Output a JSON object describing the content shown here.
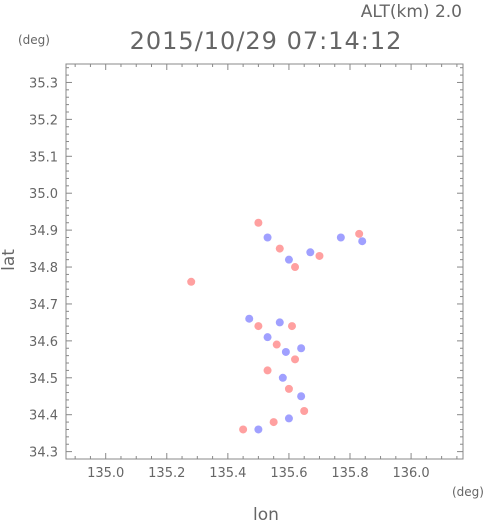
{
  "chart_data": {
    "type": "heatmap",
    "title": "2015/10/29 07:14:12",
    "subtitle": "ALT(km) 2.0",
    "xlabel": "lon",
    "ylabel": "lat",
    "x_unit": "(deg)",
    "y_unit": "(deg)",
    "xlim": [
      134.87,
      136.17
    ],
    "ylim": [
      34.28,
      35.35
    ],
    "x_ticks": [
      "135.0",
      "135.2",
      "135.4",
      "135.6",
      "135.8",
      "136.0"
    ],
    "y_ticks": [
      "34.3",
      "34.4",
      "34.5",
      "34.6",
      "34.7",
      "34.8",
      "34.9",
      "35.0",
      "35.1",
      "35.2",
      "35.3"
    ],
    "colors": {
      "positive": "#ff8080",
      "negative": "#8080ff",
      "axis": "#888888"
    },
    "points": [
      {
        "x": 135.5,
        "y": 34.92,
        "v": 1
      },
      {
        "x": 135.53,
        "y": 34.88,
        "v": -1
      },
      {
        "x": 135.57,
        "y": 34.85,
        "v": 1
      },
      {
        "x": 135.6,
        "y": 34.82,
        "v": -1
      },
      {
        "x": 135.62,
        "y": 34.8,
        "v": 1
      },
      {
        "x": 135.67,
        "y": 34.84,
        "v": -1
      },
      {
        "x": 135.7,
        "y": 34.83,
        "v": 1
      },
      {
        "x": 135.77,
        "y": 34.88,
        "v": -1
      },
      {
        "x": 135.83,
        "y": 34.89,
        "v": 1
      },
      {
        "x": 135.84,
        "y": 34.87,
        "v": -1
      },
      {
        "x": 135.28,
        "y": 34.76,
        "v": 1
      },
      {
        "x": 135.47,
        "y": 34.66,
        "v": -1
      },
      {
        "x": 135.5,
        "y": 34.64,
        "v": 1
      },
      {
        "x": 135.53,
        "y": 34.61,
        "v": -1
      },
      {
        "x": 135.56,
        "y": 34.59,
        "v": 1
      },
      {
        "x": 135.59,
        "y": 34.57,
        "v": -1
      },
      {
        "x": 135.62,
        "y": 34.55,
        "v": 1
      },
      {
        "x": 135.57,
        "y": 34.65,
        "v": -1
      },
      {
        "x": 135.61,
        "y": 34.64,
        "v": 1
      },
      {
        "x": 135.64,
        "y": 34.58,
        "v": -1
      },
      {
        "x": 135.53,
        "y": 34.52,
        "v": 1
      },
      {
        "x": 135.58,
        "y": 34.5,
        "v": -1
      },
      {
        "x": 135.6,
        "y": 34.47,
        "v": 1
      },
      {
        "x": 135.64,
        "y": 34.45,
        "v": -1
      },
      {
        "x": 135.65,
        "y": 34.41,
        "v": 1
      },
      {
        "x": 135.6,
        "y": 34.39,
        "v": -1
      },
      {
        "x": 135.55,
        "y": 34.38,
        "v": 1
      },
      {
        "x": 135.5,
        "y": 34.36,
        "v": -1
      },
      {
        "x": 135.45,
        "y": 34.36,
        "v": 1
      }
    ]
  }
}
